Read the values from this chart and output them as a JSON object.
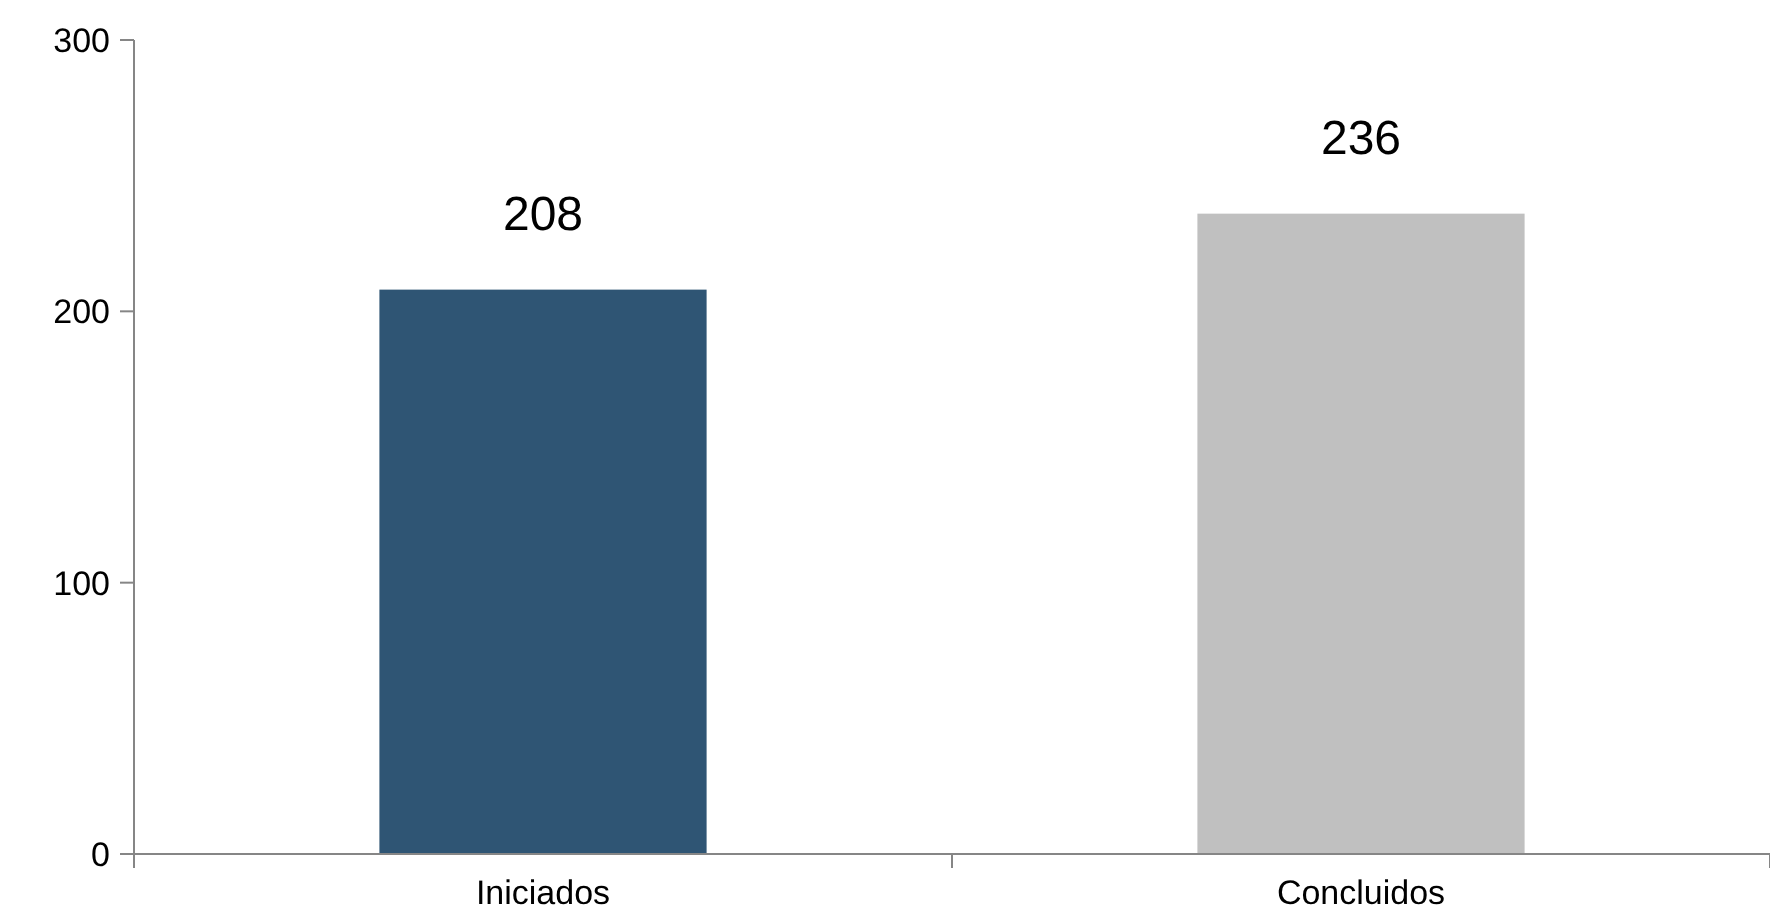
{
  "chart_data": {
    "type": "bar",
    "categories": [
      "Iniciados",
      "Concluidos"
    ],
    "values": [
      208,
      236
    ],
    "colors": [
      "#2f5574",
      "#c0c0c0"
    ],
    "ylim": [
      0,
      300
    ],
    "yticks": [
      0,
      100,
      200,
      300
    ],
    "grid": false,
    "data_labels": true
  }
}
